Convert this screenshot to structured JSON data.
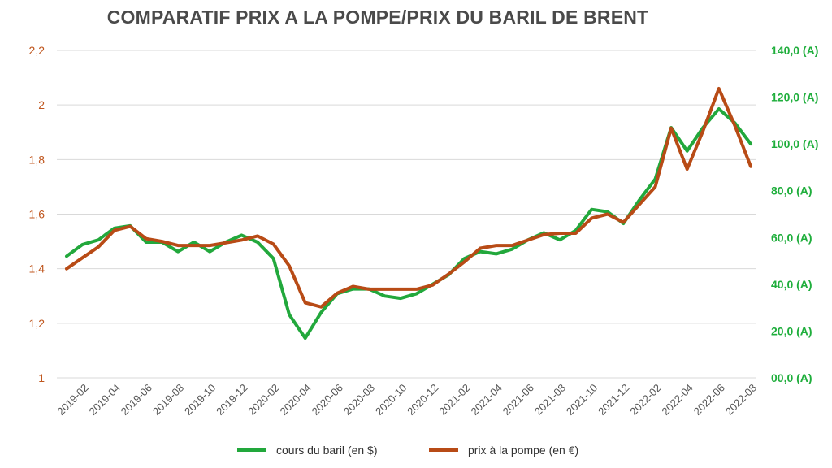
{
  "chart_data": {
    "type": "line",
    "title": "COMPARATIF PRIX A LA POMPE/PRIX DU BARIL DE BRENT",
    "x": [
      "2019-01",
      "2019-02",
      "2019-03",
      "2019-04",
      "2019-05",
      "2019-06",
      "2019-07",
      "2019-08",
      "2019-09",
      "2019-10",
      "2019-11",
      "2019-12",
      "2020-01",
      "2020-02",
      "2020-03",
      "2020-04",
      "2020-05",
      "2020-06",
      "2020-07",
      "2020-08",
      "2020-09",
      "2020-10",
      "2020-11",
      "2020-12",
      "2021-01",
      "2021-02",
      "2021-03",
      "2021-04",
      "2021-05",
      "2021-06",
      "2021-07",
      "2021-08",
      "2021-09",
      "2021-10",
      "2021-11",
      "2021-12",
      "2022-01",
      "2022-02",
      "2022-03",
      "2022-04",
      "2022-05",
      "2022-06",
      "2022-07",
      "2022-08"
    ],
    "x_tick_labels": [
      "2019-02",
      "2019-04",
      "2019-06",
      "2019-08",
      "2019-10",
      "2019-12",
      "2020-02",
      "2020-04",
      "2020-06",
      "2020-08",
      "2020-10",
      "2020-12",
      "2021-02",
      "2021-04",
      "2021-06",
      "2021-08",
      "2021-10",
      "2021-12",
      "2022-02",
      "2022-04",
      "2022-06",
      "2022-08"
    ],
    "y_left": {
      "ticks": [
        "1",
        "1,2",
        "1,4",
        "1,6",
        "1,8",
        "2",
        "2,2"
      ],
      "ylim": [
        1,
        2.2
      ]
    },
    "y_right": {
      "ticks": [
        "00,0 (A)",
        "20,0 (A)",
        "40,0 (A)",
        "60,0 (A)",
        "80,0 (A)",
        "100,0 (A)",
        "120,0 (A)",
        "140,0 (A)"
      ],
      "ylim": [
        0,
        140
      ]
    },
    "series": [
      {
        "name": "cours du baril (en $)",
        "axis": "right",
        "color": "#22a83c",
        "values": [
          52,
          57,
          59,
          64,
          65,
          58,
          58,
          54,
          58,
          54,
          58,
          61,
          58,
          51,
          27,
          17,
          28,
          36,
          38,
          38,
          35,
          34,
          36,
          40,
          44,
          51,
          54,
          53,
          55,
          59,
          62,
          59,
          63,
          72,
          71,
          66,
          76,
          85,
          107,
          97,
          107,
          115,
          109,
          100
        ]
      },
      {
        "name": "prix à la pompe (en €)",
        "axis": "left",
        "color": "#b84b16",
        "values": [
          1.4,
          1.44,
          1.48,
          1.54,
          1.555,
          1.51,
          1.5,
          1.485,
          1.485,
          1.485,
          1.495,
          1.505,
          1.52,
          1.49,
          1.41,
          1.275,
          1.26,
          1.31,
          1.335,
          1.325,
          1.325,
          1.325,
          1.325,
          1.34,
          1.38,
          1.425,
          1.475,
          1.485,
          1.485,
          1.505,
          1.525,
          1.53,
          1.53,
          1.585,
          1.6,
          1.57,
          1.635,
          1.7,
          1.915,
          1.765,
          1.905,
          2.06,
          1.925,
          1.775
        ]
      }
    ],
    "legend_position": "bottom",
    "grid": true
  }
}
